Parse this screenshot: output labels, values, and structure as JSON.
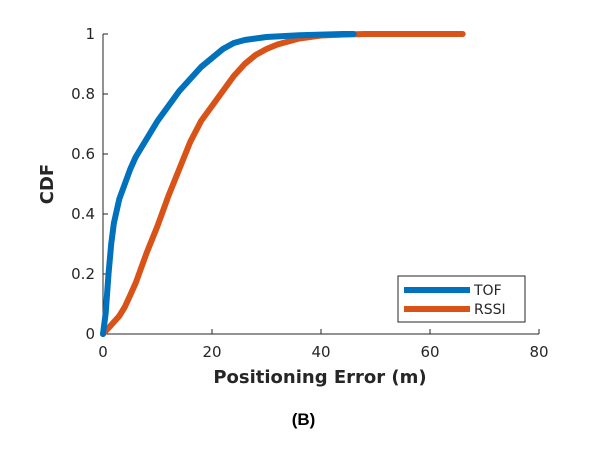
{
  "caption": "(B)",
  "chart_data": {
    "type": "line",
    "title": "",
    "xlabel": "Positioning Error (m)",
    "ylabel": "CDF",
    "xlim": [
      0,
      80
    ],
    "ylim": [
      0,
      1
    ],
    "x_ticks": [
      0,
      20,
      40,
      60,
      80
    ],
    "y_ticks": [
      0,
      0.2,
      0.4,
      0.6,
      0.8,
      1
    ],
    "y_tick_labels": [
      "0",
      "0.2",
      "0.4",
      "0.6",
      "0.8",
      "1"
    ],
    "grid": false,
    "legend": "bottom-right",
    "series": [
      {
        "name": "TOF",
        "color": "#0072BD",
        "x": [
          0,
          0.5,
          1,
          1.5,
          2,
          3,
          4,
          5,
          6,
          8,
          10,
          12,
          14,
          16,
          18,
          20,
          22,
          24,
          26,
          28,
          30,
          33,
          36,
          40,
          44,
          46
        ],
        "y": [
          0,
          0.07,
          0.2,
          0.3,
          0.37,
          0.45,
          0.5,
          0.55,
          0.59,
          0.65,
          0.71,
          0.76,
          0.81,
          0.85,
          0.89,
          0.92,
          0.95,
          0.97,
          0.98,
          0.985,
          0.99,
          0.993,
          0.996,
          0.998,
          1,
          1
        ]
      },
      {
        "name": "RSSI",
        "color": "#D95319",
        "x": [
          0,
          1,
          2,
          3,
          4,
          5,
          6,
          8,
          10,
          12,
          14,
          16,
          18,
          20,
          22,
          24,
          26,
          28,
          30,
          32,
          34,
          36,
          38,
          40,
          44,
          48,
          52,
          56,
          60,
          66
        ],
        "y": [
          0,
          0.02,
          0.04,
          0.06,
          0.09,
          0.13,
          0.17,
          0.27,
          0.36,
          0.46,
          0.55,
          0.64,
          0.71,
          0.76,
          0.81,
          0.86,
          0.9,
          0.93,
          0.95,
          0.965,
          0.975,
          0.985,
          0.99,
          0.995,
          0.998,
          1,
          1,
          1,
          1,
          1
        ]
      }
    ]
  }
}
